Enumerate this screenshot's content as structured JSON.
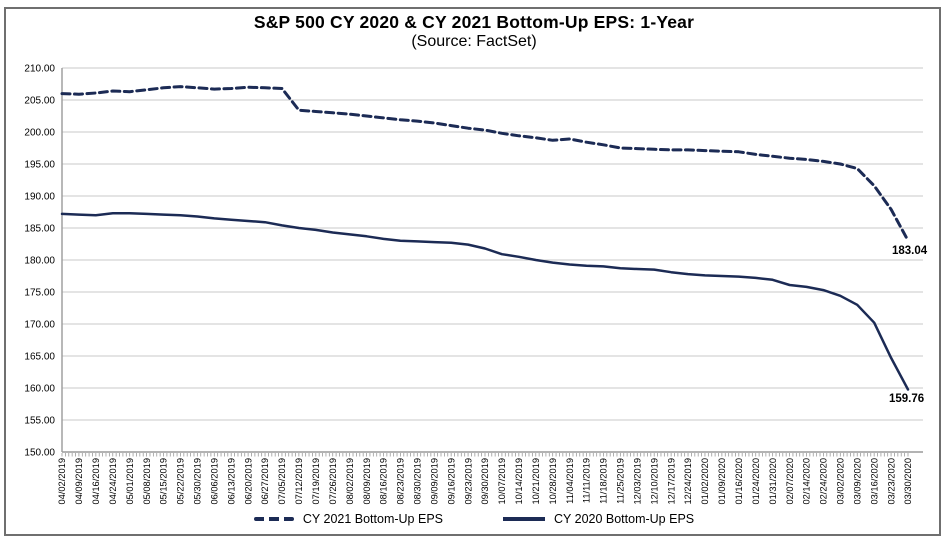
{
  "figure": {
    "title": "S&P 500 CY 2020 & CY 2021 Bottom-Up EPS: 1-Year",
    "subtitle": "(Source: FactSet)"
  },
  "colors": {
    "line": "#1c2b55",
    "gridline": "#c8c8c8",
    "axis": "#9a9a9a",
    "border": "#6f6f6f",
    "text": "#000000"
  },
  "chart_data": {
    "type": "line",
    "title": "S&P 500 CY 2020 & CY 2021 Bottom-Up EPS: 1-Year",
    "subtitle": "(Source: FactSet)",
    "xlabel": "",
    "ylabel": "",
    "ylim": [
      150,
      210
    ],
    "ytick_step": 5,
    "ytick_format": "0.00",
    "grid": "horizontal",
    "legend_position": "bottom",
    "categories": [
      "04/02/2019",
      "04/09/2019",
      "04/16/2019",
      "04/24/2019",
      "05/01/2019",
      "05/08/2019",
      "05/15/2019",
      "05/22/2019",
      "05/30/2019",
      "06/06/2019",
      "06/13/2019",
      "06/20/2019",
      "06/27/2019",
      "07/05/2019",
      "07/12/2019",
      "07/19/2019",
      "07/26/2019",
      "08/02/2019",
      "08/09/2019",
      "08/16/2019",
      "08/23/2019",
      "08/30/2019",
      "09/09/2019",
      "09/16/2019",
      "09/23/2019",
      "09/30/2019",
      "10/07/2019",
      "10/14/2019",
      "10/21/2019",
      "10/28/2019",
      "11/04/2019",
      "11/11/2019",
      "11/18/2019",
      "11/25/2019",
      "12/03/2019",
      "12/10/2019",
      "12/17/2019",
      "12/24/2019",
      "01/02/2020",
      "01/09/2020",
      "01/16/2020",
      "01/24/2020",
      "01/31/2020",
      "02/07/2020",
      "02/14/2020",
      "02/24/2020",
      "03/02/2020",
      "03/09/2020",
      "03/16/2020",
      "03/23/2020",
      "03/30/2020"
    ],
    "series": [
      {
        "name": "CY 2021 Bottom-Up EPS",
        "style": "dashed",
        "end_label": "183.04",
        "values": [
          206.0,
          205.9,
          206.1,
          206.4,
          206.3,
          206.6,
          206.9,
          207.1,
          206.9,
          206.7,
          206.8,
          207.0,
          206.9,
          206.8,
          203.4,
          203.2,
          203.0,
          202.8,
          202.5,
          202.2,
          201.9,
          201.7,
          201.4,
          201.0,
          200.6,
          200.3,
          199.8,
          199.4,
          199.1,
          198.7,
          198.9,
          198.4,
          198.0,
          197.5,
          197.4,
          197.3,
          197.2,
          197.2,
          197.1,
          197.0,
          196.9,
          196.5,
          196.2,
          195.9,
          195.7,
          195.4,
          195.0,
          194.3,
          191.6,
          187.9,
          183.04
        ]
      },
      {
        "name": "CY 2020 Bottom-Up EPS",
        "style": "solid",
        "end_label": "159.76",
        "values": [
          187.2,
          187.1,
          187.0,
          187.3,
          187.3,
          187.2,
          187.1,
          187.0,
          186.8,
          186.5,
          186.3,
          186.1,
          185.9,
          185.4,
          185.0,
          184.7,
          184.3,
          184.0,
          183.7,
          183.3,
          183.0,
          182.9,
          182.8,
          182.7,
          182.4,
          181.8,
          180.9,
          180.5,
          180.0,
          179.6,
          179.3,
          179.1,
          179.0,
          178.7,
          178.6,
          178.5,
          178.1,
          177.8,
          177.6,
          177.5,
          177.4,
          177.2,
          176.9,
          176.1,
          175.8,
          175.3,
          174.4,
          173.0,
          170.2,
          164.7,
          159.76
        ]
      }
    ]
  }
}
